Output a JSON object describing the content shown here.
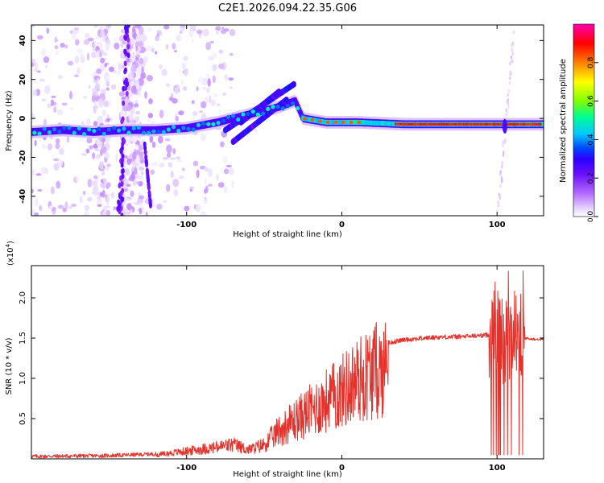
{
  "title": "C2E1.2026.094.22.35.G06",
  "colors": {
    "snr_line": "#e8302a",
    "frame": "#000000",
    "colormap": [
      "#ffffff",
      "#e6d6ff",
      "#b46bff",
      "#7a14ff",
      "#2a00ff",
      "#0050ff",
      "#00c8ff",
      "#00ff90",
      "#80ff00",
      "#ffff00",
      "#ff8000",
      "#ff0000",
      "#ff00b0"
    ]
  },
  "chart_data": [
    {
      "type": "heatmap",
      "title": "C2E1.2026.094.22.35.G06",
      "xlabel": "Height of straight line (km)",
      "ylabel": "Frequency (Hz)",
      "xlim": [
        -200,
        130
      ],
      "ylim": [
        -50,
        48
      ],
      "x_ticks": [
        -100,
        0,
        100
      ],
      "y_ticks": [
        40,
        20,
        0,
        -20,
        -40
      ],
      "main_trace": [
        {
          "x": -200,
          "y": -7
        },
        {
          "x": -180,
          "y": -6
        },
        {
          "x": -160,
          "y": -7
        },
        {
          "x": -140,
          "y": -6
        },
        {
          "x": -120,
          "y": -6
        },
        {
          "x": -100,
          "y": -5
        },
        {
          "x": -80,
          "y": -2
        },
        {
          "x": -60,
          "y": 2
        },
        {
          "x": -40,
          "y": 6
        },
        {
          "x": -30,
          "y": 9
        },
        {
          "x": -25,
          "y": 0
        },
        {
          "x": -10,
          "y": -2
        },
        {
          "x": 10,
          "y": -2
        },
        {
          "x": 40,
          "y": -3
        },
        {
          "x": 80,
          "y": -3
        },
        {
          "x": 100,
          "y": -3
        },
        {
          "x": 130,
          "y": -3
        }
      ],
      "colorbar": {
        "label": "Normalized spectral amplitude",
        "ticks": [
          "0.0",
          "0.2",
          "0.4",
          "0.6",
          "0.8"
        ],
        "range": [
          0,
          1
        ]
      }
    },
    {
      "type": "line",
      "xlabel": "Height of straight line (km)",
      "ylabel": "SNR (10 * v/v)",
      "multiplier_label": "(x10",
      "multiplier_exp": "4",
      "multiplier_close": ")",
      "xlim": [
        -200,
        130
      ],
      "ylim": [
        0,
        2.4
      ],
      "x_ticks": [
        -100,
        0,
        100
      ],
      "y_ticks": [
        "0.5",
        "1.0",
        "1.5",
        "2.0"
      ],
      "series": [
        {
          "name": "SNR",
          "envelope": [
            {
              "x": -200,
              "y": 0.03
            },
            {
              "x": -150,
              "y": 0.04
            },
            {
              "x": -120,
              "y": 0.06
            },
            {
              "x": -100,
              "y": 0.12
            },
            {
              "x": -80,
              "y": 0.18
            },
            {
              "x": -70,
              "y": 0.22
            },
            {
              "x": -60,
              "y": 0.14
            },
            {
              "x": -50,
              "y": 0.22
            },
            {
              "x": -40,
              "y": 0.45
            },
            {
              "x": -30,
              "y": 0.6
            },
            {
              "x": -20,
              "y": 0.75
            },
            {
              "x": -10,
              "y": 0.9
            },
            {
              "x": 0,
              "y": 1.05
            },
            {
              "x": 10,
              "y": 1.22
            },
            {
              "x": 20,
              "y": 1.35
            },
            {
              "x": 30,
              "y": 1.44
            },
            {
              "x": 40,
              "y": 1.48
            },
            {
              "x": 60,
              "y": 1.51
            },
            {
              "x": 80,
              "y": 1.52
            },
            {
              "x": 95,
              "y": 1.54
            },
            {
              "x": 100,
              "y": 1.6
            },
            {
              "x": 105,
              "y": 1.45
            },
            {
              "x": 110,
              "y": 1.55
            },
            {
              "x": 120,
              "y": 1.49
            },
            {
              "x": 130,
              "y": 1.49
            }
          ],
          "peak": {
            "x": 106,
            "y": 2.35
          }
        }
      ]
    }
  ]
}
